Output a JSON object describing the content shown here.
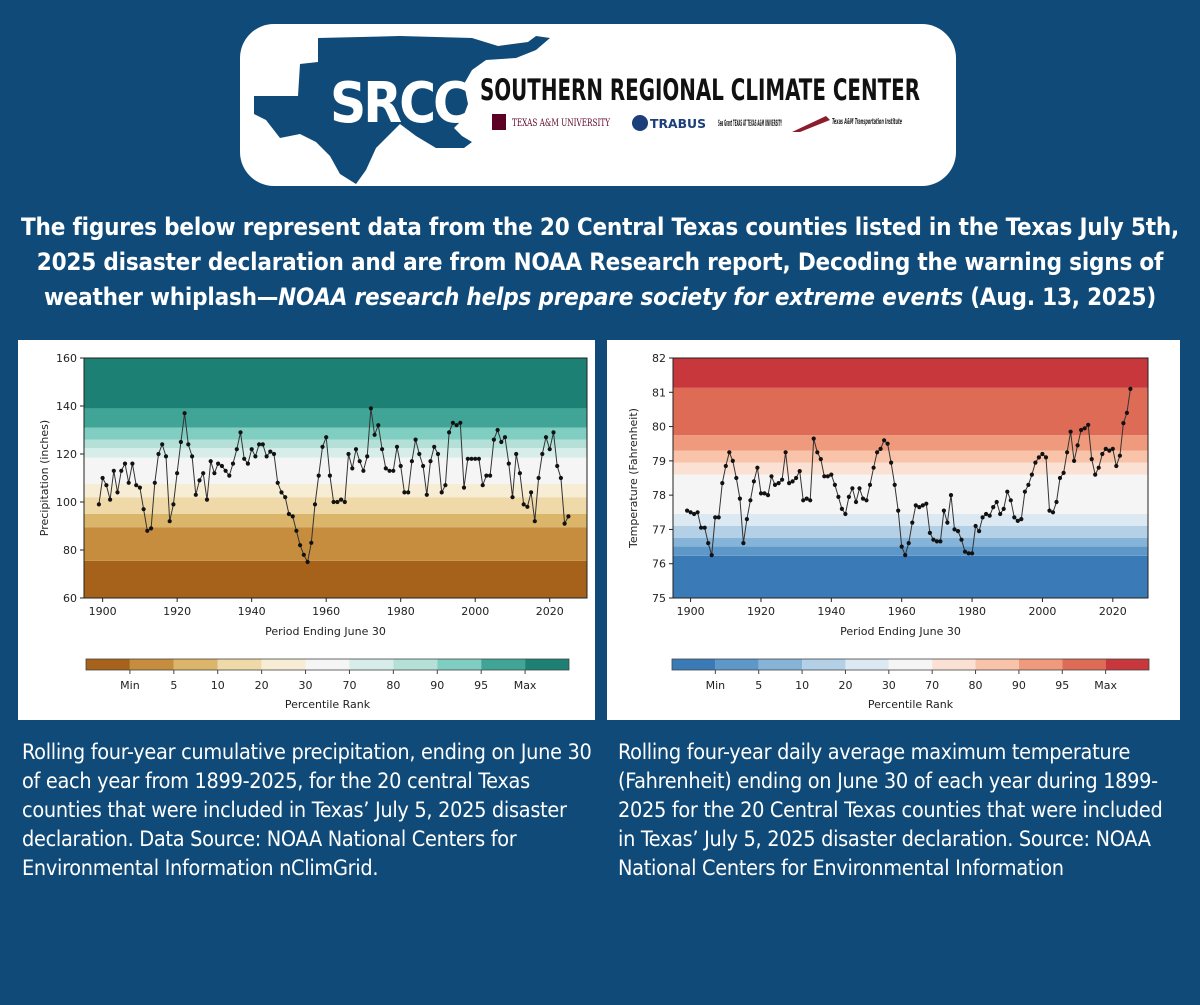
{
  "header": {
    "logo_text": "SRCC",
    "org_name": "SOUTHERN REGIONAL CLIMATE CENTER",
    "partners": [
      "TEXAS A&M UNIVERSITY",
      "TRABUS",
      "Sea Grant TEXAS AT TEXAS A&M UNIVERSITY",
      "Texas A&M Transportation Institute"
    ]
  },
  "intro": {
    "plain": "The figures below represent data from the 20 Central Texas counties listed in the Texas July 5th, 2025 disaster declaration and are from NOAA Research report, Decoding the warning signs of weather whiplash—",
    "italic": "NOAA research helps prepare society for extreme events",
    "tail": " (Aug. 13, 2025)"
  },
  "captions": {
    "left": "Rolling four-year cumulative precipitation, ending on June 30 of each year from 1899-2025, for the 20 central Texas counties that were included in Texas’ July 5, 2025 disaster declaration. Data Source: NOAA National Centers for Environmental Information nClimGrid.",
    "right": "Rolling four-year daily average maximum temperature (Fahrenheit) ending on June 30 of each year during 1899-2025 for the 20 Central Texas counties that were included in Texas’ July 5, 2025 disaster declaration. Source: NOAA National Centers for Environmental Information"
  },
  "chart_data": [
    {
      "type": "line",
      "xlabel": "Period Ending June 30",
      "ylabel": "Precipitation (inches)",
      "xlim": [
        1895,
        2030
      ],
      "ylim": [
        60,
        160
      ],
      "xticks": [
        1900,
        1920,
        1940,
        1960,
        1980,
        2000,
        2020
      ],
      "yticks": [
        60,
        80,
        100,
        120,
        140,
        160
      ],
      "percentile_bands": [
        {
          "from": 60,
          "to": 75.5,
          "color": "#a6611a"
        },
        {
          "from": 75.5,
          "to": 89.5,
          "color": "#c68d3f"
        },
        {
          "from": 89.5,
          "to": 95,
          "color": "#dbb56a"
        },
        {
          "from": 95,
          "to": 102,
          "color": "#efd9a8"
        },
        {
          "from": 102,
          "to": 107.5,
          "color": "#f7ecd4"
        },
        {
          "from": 107.5,
          "to": 118.5,
          "color": "#f5f5f5"
        },
        {
          "from": 118.5,
          "to": 122.5,
          "color": "#d7ede9"
        },
        {
          "from": 122.5,
          "to": 126,
          "color": "#b4e0d8"
        },
        {
          "from": 126,
          "to": 131,
          "color": "#80cdc1"
        },
        {
          "from": 131,
          "to": 139,
          "color": "#40a597"
        },
        {
          "from": 139,
          "to": 160,
          "color": "#1c8074"
        }
      ],
      "colorbar": {
        "title": "Percentile Rank",
        "labels": [
          "Min",
          "5",
          "10",
          "20",
          "30",
          "70",
          "80",
          "90",
          "95",
          "Max"
        ],
        "colors": [
          "#a6611a",
          "#c68d3f",
          "#dbb56a",
          "#efd9a8",
          "#f7ecd4",
          "#f5f5f5",
          "#d7ede9",
          "#b4e0d8",
          "#80cdc1",
          "#40a597",
          "#1c8074"
        ]
      },
      "series": [
        {
          "x": [
            1899,
            1900,
            1901,
            1902,
            1903,
            1904,
            1905,
            1906,
            1907,
            1908,
            1909,
            1910,
            1911,
            1912,
            1913,
            1914,
            1915,
            1916,
            1917,
            1918,
            1919,
            1920,
            1921,
            1922,
            1923,
            1924,
            1925,
            1926,
            1927,
            1928,
            1929,
            1930,
            1931,
            1932,
            1933,
            1934,
            1935,
            1936,
            1937,
            1938,
            1939,
            1940,
            1941,
            1942,
            1943,
            1944,
            1945,
            1946,
            1947,
            1948,
            1949,
            1950,
            1951,
            1952,
            1953,
            1954,
            1955,
            1956,
            1957,
            1958,
            1959,
            1960,
            1961,
            1962,
            1963,
            1964,
            1965,
            1966,
            1967,
            1968,
            1969,
            1970,
            1971,
            1972,
            1973,
            1974,
            1975,
            1976,
            1977,
            1978,
            1979,
            1980,
            1981,
            1982,
            1983,
            1984,
            1985,
            1986,
            1987,
            1988,
            1989,
            1990,
            1991,
            1992,
            1993,
            1994,
            1995,
            1996,
            1997,
            1998,
            1999,
            2000,
            2001,
            2002,
            2003,
            2004,
            2005,
            2006,
            2007,
            2008,
            2009,
            2010,
            2011,
            2012,
            2013,
            2014,
            2015,
            2016,
            2017,
            2018,
            2019,
            2020,
            2021,
            2022,
            2023,
            2024,
            2025
          ],
          "y": [
            99,
            110,
            107,
            101,
            113,
            104,
            113,
            116,
            108,
            116,
            107,
            106,
            97,
            88,
            89,
            108,
            120,
            124,
            119,
            92,
            99,
            112,
            125,
            137,
            124,
            119,
            103,
            109,
            112,
            101,
            117,
            112,
            116,
            115,
            113,
            111,
            116,
            122,
            129,
            118,
            116,
            122,
            119,
            124,
            124,
            119,
            121,
            120,
            108,
            104,
            102,
            95,
            94,
            88,
            82,
            78,
            75,
            83,
            99,
            111,
            123,
            127,
            111,
            100,
            100,
            101,
            100,
            120,
            114,
            122,
            117,
            113,
            119,
            139,
            128,
            132,
            122,
            114,
            113,
            113,
            123,
            115,
            104,
            104,
            117,
            126,
            120,
            115,
            103,
            117,
            123,
            120,
            104,
            107,
            129,
            133,
            132,
            133,
            106,
            118,
            118,
            118,
            118,
            107,
            111,
            111,
            126,
            130,
            125,
            127,
            116,
            102,
            120,
            112,
            99,
            98,
            104,
            92,
            110,
            120,
            127,
            122,
            129,
            115,
            110,
            91,
            94
          ]
        }
      ]
    },
    {
      "type": "line",
      "xlabel": "Period Ending June 30",
      "ylabel": "Temperature (Fahrenheit)",
      "xlim": [
        1895,
        2030
      ],
      "ylim": [
        75,
        82
      ],
      "xticks": [
        1900,
        1920,
        1940,
        1960,
        1980,
        2000,
        2020
      ],
      "yticks": [
        75,
        76,
        77,
        78,
        79,
        80,
        81,
        82
      ],
      "percentile_bands": [
        {
          "from": 75,
          "to": 76.23,
          "color": "#3a7ab7"
        },
        {
          "from": 76.23,
          "to": 76.5,
          "color": "#5d98c8"
        },
        {
          "from": 76.5,
          "to": 76.75,
          "color": "#86b3d8"
        },
        {
          "from": 76.75,
          "to": 77.1,
          "color": "#b3d0e6"
        },
        {
          "from": 77.1,
          "to": 77.45,
          "color": "#dce9f2"
        },
        {
          "from": 77.45,
          "to": 78.6,
          "color": "#f5f5f5"
        },
        {
          "from": 78.6,
          "to": 78.95,
          "color": "#fbe1d3"
        },
        {
          "from": 78.95,
          "to": 79.3,
          "color": "#f8c3a8"
        },
        {
          "from": 79.3,
          "to": 79.75,
          "color": "#ef9a7c"
        },
        {
          "from": 79.75,
          "to": 81.13,
          "color": "#de6b55"
        },
        {
          "from": 81.13,
          "to": 82,
          "color": "#c8373b"
        }
      ],
      "colorbar": {
        "title": "Percentile Rank",
        "labels": [
          "Min",
          "5",
          "10",
          "20",
          "30",
          "70",
          "80",
          "90",
          "95",
          "Max"
        ],
        "colors": [
          "#3a7ab7",
          "#5d98c8",
          "#86b3d8",
          "#b3d0e6",
          "#dce9f2",
          "#f5f5f5",
          "#fbe1d3",
          "#f8c3a8",
          "#ef9a7c",
          "#de6b55",
          "#c8373b"
        ]
      },
      "series": [
        {
          "x": [
            1899,
            1900,
            1901,
            1902,
            1903,
            1904,
            1905,
            1906,
            1907,
            1908,
            1909,
            1910,
            1911,
            1912,
            1913,
            1914,
            1915,
            1916,
            1917,
            1918,
            1919,
            1920,
            1921,
            1922,
            1923,
            1924,
            1925,
            1926,
            1927,
            1928,
            1929,
            1930,
            1931,
            1932,
            1933,
            1934,
            1935,
            1936,
            1937,
            1938,
            1939,
            1940,
            1941,
            1942,
            1943,
            1944,
            1945,
            1946,
            1947,
            1948,
            1949,
            1950,
            1951,
            1952,
            1953,
            1954,
            1955,
            1956,
            1957,
            1958,
            1959,
            1960,
            1961,
            1962,
            1963,
            1964,
            1965,
            1966,
            1967,
            1968,
            1969,
            1970,
            1971,
            1972,
            1973,
            1974,
            1975,
            1976,
            1977,
            1978,
            1979,
            1980,
            1981,
            1982,
            1983,
            1984,
            1985,
            1986,
            1987,
            1988,
            1989,
            1990,
            1991,
            1992,
            1993,
            1994,
            1995,
            1996,
            1997,
            1998,
            1999,
            2000,
            2001,
            2002,
            2003,
            2004,
            2005,
            2006,
            2007,
            2008,
            2009,
            2010,
            2011,
            2012,
            2013,
            2014,
            2015,
            2016,
            2017,
            2018,
            2019,
            2020,
            2021,
            2022,
            2023,
            2024,
            2025
          ],
          "y": [
            77.55,
            77.5,
            77.45,
            77.5,
            77.05,
            77.05,
            76.6,
            76.25,
            77.35,
            77.35,
            78.35,
            78.85,
            79.25,
            79.0,
            78.5,
            77.9,
            76.6,
            77.3,
            77.85,
            78.4,
            78.8,
            78.05,
            78.05,
            78.0,
            78.55,
            78.3,
            78.35,
            78.45,
            79.25,
            78.35,
            78.4,
            78.5,
            78.7,
            77.85,
            77.9,
            77.85,
            79.65,
            79.25,
            79.05,
            78.55,
            78.55,
            78.6,
            78.3,
            77.95,
            77.6,
            77.45,
            77.95,
            78.2,
            77.8,
            78.2,
            77.9,
            77.85,
            78.3,
            78.8,
            79.25,
            79.35,
            79.6,
            79.5,
            78.95,
            78.3,
            77.55,
            76.5,
            76.25,
            76.6,
            77.2,
            77.7,
            77.65,
            77.7,
            77.75,
            76.9,
            76.7,
            76.65,
            76.65,
            77.55,
            77.2,
            78.0,
            77.0,
            76.95,
            76.7,
            76.35,
            76.3,
            76.3,
            77.1,
            76.95,
            77.35,
            77.45,
            77.4,
            77.65,
            77.8,
            77.45,
            77.6,
            78.1,
            77.85,
            77.35,
            77.25,
            77.3,
            78.1,
            78.3,
            78.6,
            78.95,
            79.1,
            79.2,
            79.1,
            77.55,
            77.5,
            77.8,
            78.5,
            78.65,
            79.25,
            79.85,
            79.0,
            79.45,
            79.9,
            79.95,
            80.05,
            79.05,
            78.6,
            78.8,
            79.2,
            79.35,
            79.3,
            79.35,
            78.85,
            79.15,
            80.1,
            80.4,
            81.1
          ]
        }
      ]
    }
  ]
}
